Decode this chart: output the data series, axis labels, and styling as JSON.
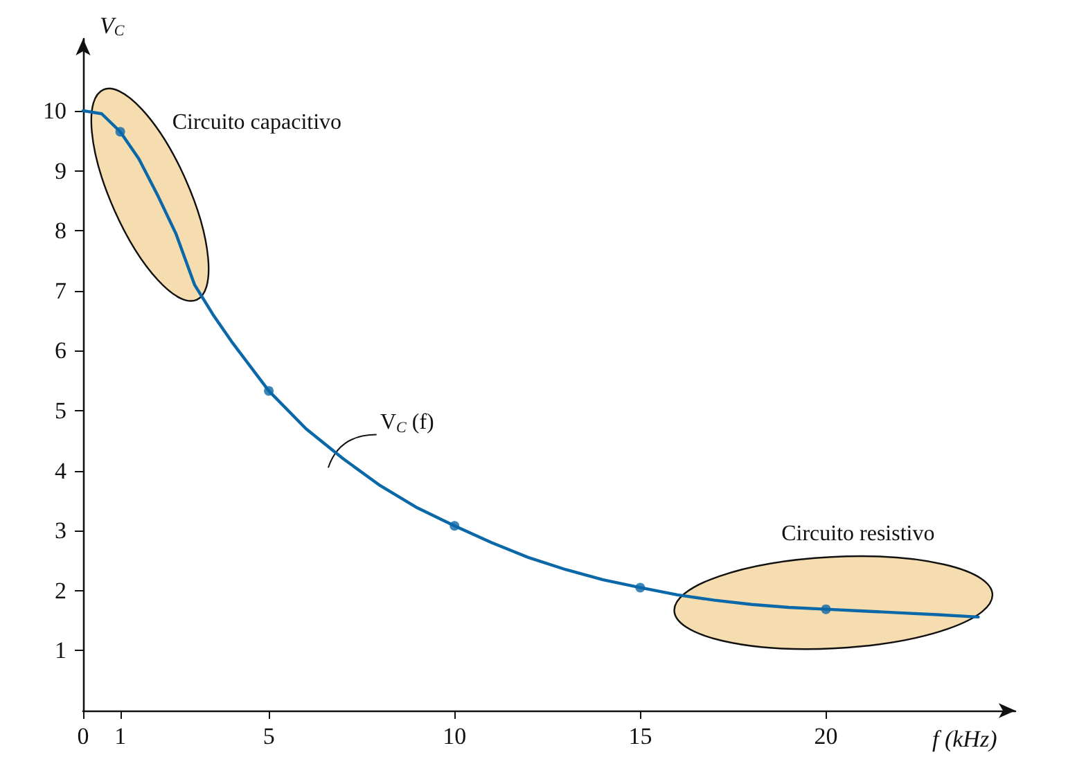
{
  "chart_data": {
    "type": "line",
    "xlabel": "f (kHz)",
    "ylabel": "V$_{C}$",
    "xlim": [
      0,
      25.1
    ],
    "ylim": [
      0,
      11.2
    ],
    "xticks": [
      0,
      1,
      5,
      10,
      15,
      20
    ],
    "yticks": [
      1,
      2,
      3,
      4,
      5,
      6,
      7,
      8,
      9,
      10
    ],
    "grid": false,
    "series": [
      {
        "color": "#0b68a8",
        "marker": "none",
        "x": [
          0,
          0.5,
          1,
          1.5,
          2,
          2.5,
          3,
          3.5,
          4,
          5,
          6,
          7,
          8,
          9,
          10,
          11,
          12,
          13,
          14,
          15,
          16,
          17,
          18,
          19,
          20,
          21,
          22,
          23,
          24.1
        ],
        "values": [
          10,
          9.95,
          9.65,
          9.2,
          8.6,
          7.95,
          7.1,
          6.6,
          6.15,
          5.33,
          4.7,
          4.2,
          3.75,
          3.38,
          3.08,
          2.8,
          2.55,
          2.35,
          2.18,
          2.05,
          1.93,
          1.84,
          1.77,
          1.72,
          1.69,
          1.66,
          1.63,
          1.6,
          1.56
        ]
      },
      {
        "type": "scatter",
        "color": "#0b68a8",
        "marker": "circle",
        "x": [
          1,
          5,
          10,
          15,
          20
        ],
        "values": [
          9.65,
          5.33,
          3.08,
          2.05,
          1.69
        ]
      }
    ],
    "annotations": [
      "Circuito capacitivo",
      "Circuito resistivo",
      "V$_{C}$ (f)"
    ]
  }
}
